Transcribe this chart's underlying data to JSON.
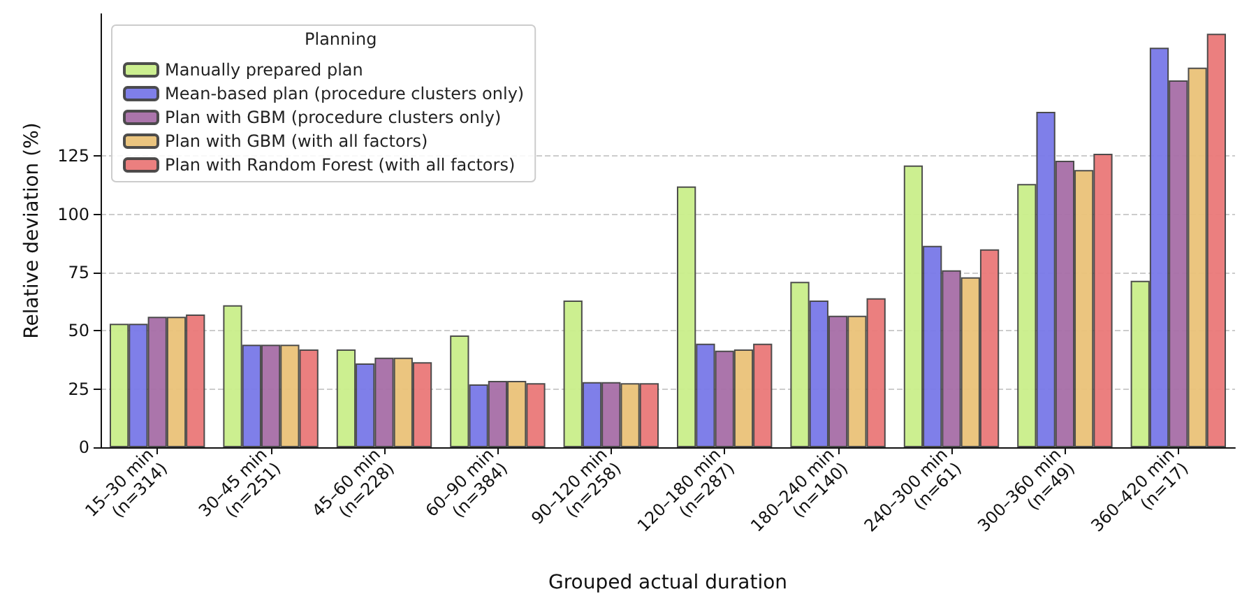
{
  "chart_data": {
    "type": "bar",
    "xlabel": "Grouped actual duration",
    "ylabel": "Relative deviation (%)",
    "legend_title": "Planning",
    "categories": [
      "15–30 min\n(n=314)",
      "30–45 min\n(n=251)",
      "45–60 min\n(n=228)",
      "60–90 min\n(n=384)",
      "90–120 min\n(n=258)",
      "120–180 min\n(n=287)",
      "180–240 min\n(n=140)",
      "240–300 min\n(n=61)",
      "300–360 min\n(n=49)",
      "360–420 min\n(n=17)"
    ],
    "series": [
      {
        "name": "Manually prepared plan",
        "color": "#c9ee8a",
        "values": [
          53,
          61,
          42,
          48,
          63,
          112,
          71,
          121,
          113,
          71.5
        ]
      },
      {
        "name": "Mean-based plan (procedure clusters only)",
        "color": "#7878e8",
        "values": [
          53,
          44,
          36,
          27,
          28,
          44.5,
          63,
          86.5,
          144,
          171.5
        ]
      },
      {
        "name": "Plan with GBM (procedure clusters only)",
        "color": "#a66ea6",
        "values": [
          56,
          44,
          38.5,
          28.5,
          28,
          41.5,
          56.5,
          76,
          123,
          157.5
        ]
      },
      {
        "name": "Plan with GBM (with all factors)",
        "color": "#eac278",
        "values": [
          56,
          44,
          38.5,
          28.5,
          27.5,
          42,
          56.5,
          73,
          119,
          163
        ]
      },
      {
        "name": "Plan with Random Forest (with all factors)",
        "color": "#ea7878",
        "values": [
          57,
          42,
          36.5,
          27.5,
          27.5,
          44.5,
          64,
          85,
          126,
          177.5
        ]
      }
    ],
    "ylim": [
      0,
      186
    ],
    "yticks": [
      0,
      25,
      50,
      75,
      100,
      125
    ],
    "grid": "y",
    "legend": "top left"
  }
}
